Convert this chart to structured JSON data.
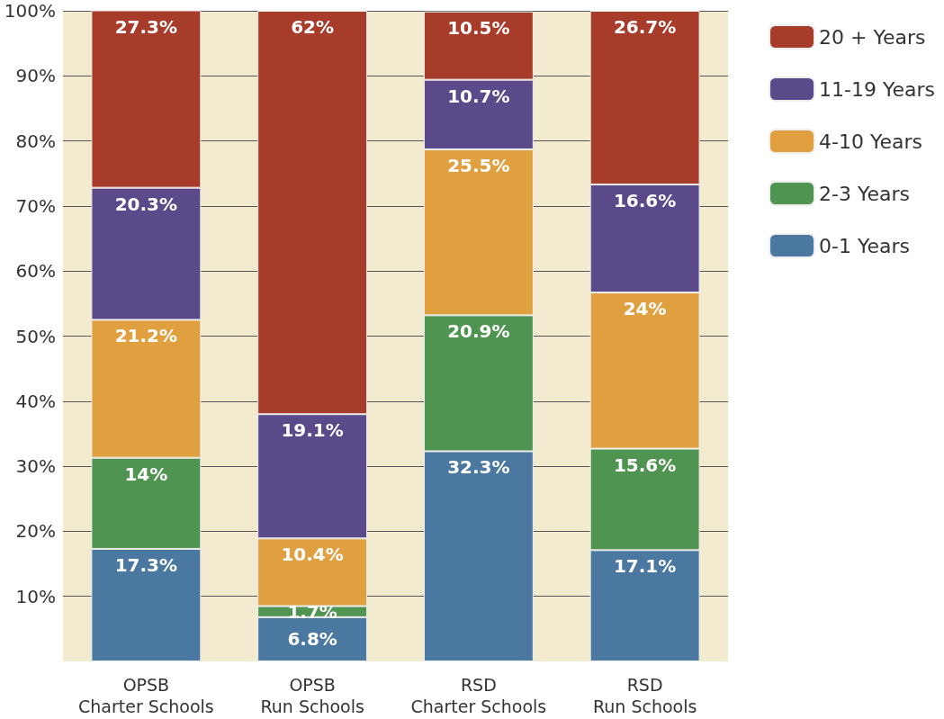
{
  "chart_data": {
    "type": "bar",
    "stacked": true,
    "categories": [
      "OPSB\nCharter Schools",
      "OPSB\nRun Schools",
      "RSD\nCharter Schools",
      "RSD\nRun Schools"
    ],
    "series": [
      {
        "name": "0-1 Years",
        "color": "#4a78a0",
        "values": [
          17.3,
          6.8,
          32.3,
          17.1
        ],
        "value_labels": [
          "17.3%",
          "6.8%",
          "32.3%",
          "17.1%"
        ]
      },
      {
        "name": "2-3 Years",
        "color": "#4f9450",
        "values": [
          14,
          1.7,
          20.9,
          15.6
        ],
        "value_labels": [
          "14%",
          "1.7%",
          "20.9%",
          "15.6%"
        ]
      },
      {
        "name": "4-10 Years",
        "color": "#e0a040",
        "values": [
          21.2,
          10.4,
          25.5,
          24
        ],
        "value_labels": [
          "21.2%",
          "10.4%",
          "25.5%",
          "24%"
        ]
      },
      {
        "name": "11-19 Years",
        "color": "#5a4a8a",
        "values": [
          20.3,
          19.1,
          10.7,
          16.6
        ],
        "value_labels": [
          "20.3%",
          "19.1%",
          "10.7%",
          "16.6%"
        ]
      },
      {
        "name": "20 + Years",
        "color": "#a83c2a",
        "values": [
          27.3,
          62,
          10.5,
          26.7
        ],
        "value_labels": [
          "27.3%",
          "62%",
          "10.5%",
          "26.7%"
        ]
      }
    ],
    "ylim": [
      0,
      100
    ],
    "yticks": [
      {
        "value": 10,
        "label": "10%"
      },
      {
        "value": 20,
        "label": "20%"
      },
      {
        "value": 30,
        "label": "30%"
      },
      {
        "value": 40,
        "label": "40%"
      },
      {
        "value": 50,
        "label": "50%"
      },
      {
        "value": 60,
        "label": "60%"
      },
      {
        "value": 70,
        "label": "70%"
      },
      {
        "value": 80,
        "label": "80%"
      },
      {
        "value": 90,
        "label": "90%"
      },
      {
        "value": 100,
        "label": "100%"
      }
    ],
    "grid": "y",
    "legend": "top right"
  }
}
